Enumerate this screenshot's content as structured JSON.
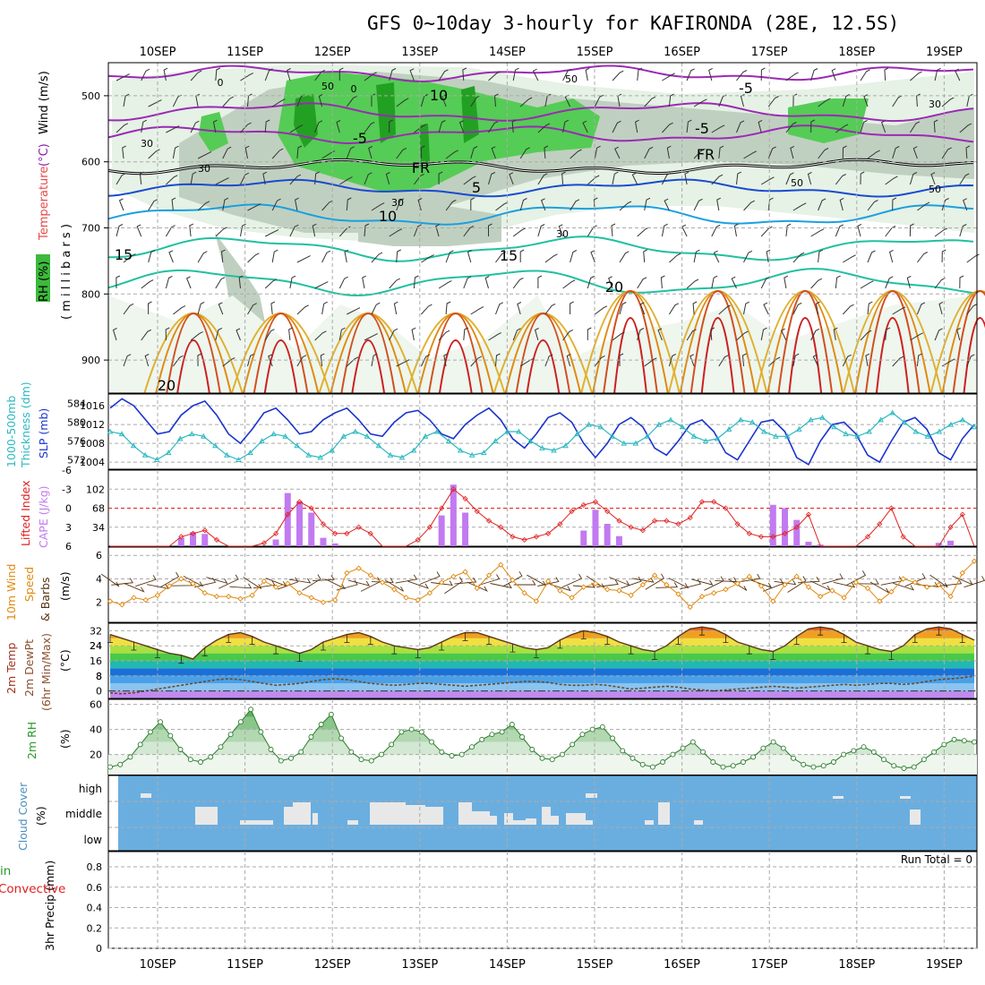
{
  "title": "GFS 0~10day 3-hourly for KAFIRONDA (28E, 12.5S)",
  "dates": [
    "10SEP",
    "11SEP",
    "12SEP",
    "13SEP",
    "14SEP",
    "15SEP",
    "16SEP",
    "17SEP",
    "18SEP",
    "19SEP"
  ],
  "colors": {
    "grid": "#aaaaaa",
    "slp": "#1a33cc",
    "thickness": "#2ab8c0",
    "lifted": "#e02020",
    "cape": "#c27af0",
    "wind": "#e08a10",
    "barb": "#553311",
    "rh2m": "#2a9a2a",
    "cloudBlue": "#6aaee0",
    "cloudGap": "#e8e8e8"
  },
  "chart_data": [
    {
      "id": "upper",
      "type": "contour",
      "ylabel_parts": [
        "RH (%)",
        "Temperature (°C)",
        "Wind (m/s)"
      ],
      "ylabel_units": "( m i l l i b a r s )",
      "yticks": [
        "500",
        "600",
        "700",
        "800",
        "900"
      ],
      "ylim": [
        950,
        450
      ],
      "contour_labels": [
        "10",
        "-5",
        "FR",
        "FR",
        "5",
        "10",
        "15",
        "15",
        "20",
        "20",
        "-5",
        "-5",
        "0",
        "0",
        "30",
        "30",
        "30",
        "30",
        "30",
        "50",
        "50",
        "50",
        "50"
      ]
    },
    {
      "id": "slp",
      "type": "line",
      "ylabel_left": "1000-500mb Thickness (dm)",
      "ylabel_right": "SLP (mb)",
      "ticks_left": [
        "584",
        "580",
        "576",
        "572"
      ],
      "ticks_right": [
        "1016",
        "1012",
        "1008",
        "1004"
      ],
      "slp_mb": [
        1015.5,
        1017.5,
        1016,
        1013,
        1010,
        1010.5,
        1014,
        1016,
        1017,
        1014,
        1010,
        1008,
        1011,
        1014.5,
        1015.5,
        1013,
        1010,
        1010.5,
        1013,
        1014.5,
        1015.5,
        1013,
        1010,
        1009.5,
        1012.5,
        1014.5,
        1015,
        1013,
        1010,
        1009,
        1012,
        1014,
        1015.5,
        1013,
        1009,
        1007,
        1010,
        1013.5,
        1014.5,
        1012.5,
        1008,
        1005,
        1008,
        1012,
        1013.5,
        1011.5,
        1007,
        1005.5,
        1008.5,
        1012,
        1013,
        1010.5,
        1006,
        1004.5,
        1008.5,
        1012.5,
        1013,
        1010.5,
        1005,
        1003.5,
        1008.5,
        1012,
        1012.5,
        1010,
        1005.5,
        1004,
        1008.5,
        1012.5,
        1013.5,
        1011,
        1006,
        1004.5,
        1009,
        1012
      ],
      "thickness_dm": [
        578,
        577.5,
        575,
        573,
        572,
        573.5,
        576.5,
        577.5,
        577,
        575,
        573,
        572,
        573.5,
        576,
        577.5,
        577,
        575,
        573,
        572.5,
        574,
        577,
        578,
        577,
        575,
        573,
        572.5,
        574,
        577,
        578,
        576,
        574,
        573,
        573.5,
        576,
        578,
        578,
        576,
        574.5,
        574,
        575,
        577.5,
        579.5,
        579,
        577,
        575.5,
        575.5,
        577,
        579.5,
        580.5,
        579,
        577,
        576,
        576.5,
        578.5,
        580.5,
        580,
        578,
        577,
        577,
        578.5,
        580.5,
        581,
        579,
        577.5,
        577,
        578,
        580.5,
        582,
        580,
        578,
        577,
        578,
        579.5,
        580.5,
        579
      ]
    },
    {
      "id": "cape",
      "type": "bar+line",
      "ylabel_left": "Lifted Index",
      "ylabel_right": "CAPE (J/kg)",
      "ticks_left": [
        "-6",
        "-3",
        "0",
        "3",
        "6"
      ],
      "ticks_right": [
        "102",
        "68",
        "34"
      ],
      "cape_jkg": [
        0,
        0,
        0,
        0,
        0,
        0,
        15,
        25,
        22,
        0,
        0,
        0,
        0,
        0,
        12,
        95,
        80,
        60,
        15,
        5,
        0,
        0,
        0,
        0,
        0,
        0,
        0,
        0,
        55,
        110,
        60,
        0,
        0,
        0,
        0,
        0,
        0,
        0,
        0,
        0,
        28,
        65,
        40,
        18,
        0,
        0,
        0,
        0,
        0,
        0,
        0,
        0,
        0,
        0,
        0,
        0,
        74,
        68,
        47,
        8,
        3,
        0,
        0,
        0,
        0,
        0,
        0,
        0,
        0,
        0,
        6,
        10,
        0,
        0
      ],
      "lifted_index": [
        6,
        6,
        6,
        6,
        6,
        6,
        4.5,
        4,
        3.5,
        5,
        6,
        6,
        6,
        5.5,
        4,
        1,
        -1,
        0,
        2.5,
        4,
        4,
        3,
        4,
        6,
        6,
        6,
        5,
        3,
        0,
        -3,
        -1.5,
        0.5,
        2,
        3,
        4.5,
        5,
        4.5,
        4,
        2.5,
        0.5,
        -0.5,
        -1,
        0.5,
        2,
        3,
        3.5,
        2,
        2,
        2.5,
        1.5,
        -1,
        -1,
        0,
        2.5,
        4,
        4.5,
        4.5,
        4,
        3,
        1,
        6,
        6,
        6,
        6,
        4.5,
        2.5,
        0,
        4.5,
        6,
        6,
        6,
        3,
        1,
        6
      ]
    },
    {
      "id": "wind",
      "type": "line",
      "ylabel": "10m Wind Speed & Barbs (m/s)",
      "ticks": [
        "6",
        "4",
        "2"
      ],
      "speed_ms": [
        2.1,
        1.8,
        2.4,
        2.2,
        2.6,
        3.4,
        4.0,
        3.6,
        2.8,
        2.5,
        2.5,
        2.3,
        2.6,
        3.8,
        3.3,
        3.6,
        2.8,
        2.4,
        2.0,
        2.2,
        4.5,
        4.9,
        4.3,
        3.7,
        3.1,
        2.4,
        2.2,
        2.8,
        3.7,
        4.2,
        4.6,
        3.2,
        4.3,
        5.2,
        3.9,
        2.8,
        2.1,
        3.8,
        3.0,
        2.4,
        3.3,
        3.6,
        3.1,
        3.0,
        2.6,
        3.5,
        4.3,
        3.5,
        2.7,
        1.6,
        2.5,
        2.8,
        3.1,
        3.6,
        4.2,
        3.4,
        2.1,
        3.5,
        4.2,
        3.3,
        2.5,
        3.0,
        2.4,
        3.7,
        3.2,
        2.1,
        2.9,
        4.0,
        3.7,
        3.3,
        3.5,
        2.5,
        4.5,
        5.5
      ]
    },
    {
      "id": "temp",
      "type": "area",
      "ylabel": "2m Temp 2m DewPt (6hr Min/Max) (°C)",
      "ticks": [
        "32",
        "24",
        "16",
        "8",
        "0"
      ],
      "temp_c": [
        30,
        28,
        26,
        24,
        22,
        20,
        19,
        17,
        23,
        27,
        30,
        31,
        29,
        26,
        24,
        22,
        20,
        22,
        26,
        28,
        30,
        31,
        29,
        26,
        24,
        23,
        22,
        23,
        26,
        29,
        31,
        31,
        29,
        27,
        25,
        23,
        22,
        23,
        27,
        30,
        32,
        31,
        29,
        26,
        24,
        22,
        21,
        24,
        29,
        33,
        34,
        33,
        30,
        26,
        24,
        22,
        21,
        24,
        29,
        33,
        34,
        33,
        30,
        26,
        24,
        22,
        21,
        24,
        30,
        33,
        34,
        33,
        30,
        27
      ],
      "dewpt_c": [
        -1,
        -1.5,
        -1,
        0,
        1,
        2,
        3,
        4,
        5,
        6,
        6.5,
        6,
        5,
        4,
        3,
        3.5,
        4,
        5,
        6,
        6.5,
        6,
        5,
        4,
        3.5,
        3,
        3.5,
        4,
        4,
        3.5,
        3,
        2.5,
        3,
        3.5,
        4,
        4.5,
        5,
        5,
        4.5,
        3.5,
        3,
        3,
        3.5,
        3,
        2,
        1,
        1.5,
        2,
        2.5,
        2,
        1,
        0.5,
        0,
        0.5,
        1,
        1.5,
        2,
        2.5,
        2,
        1.5,
        2,
        2.5,
        3,
        3.5,
        3,
        3.5,
        4,
        4,
        3.5,
        4,
        5,
        6,
        6.5,
        7,
        8
      ]
    },
    {
      "id": "rh2m",
      "type": "area",
      "ylabel": "2m RH (%)",
      "ticks": [
        "60",
        "40",
        "20"
      ],
      "rh_pct": [
        10,
        12,
        18,
        28,
        38,
        46,
        35,
        24,
        16,
        14,
        18,
        26,
        36,
        46,
        56,
        38,
        24,
        15,
        17,
        22,
        34,
        44,
        52,
        33,
        22,
        16,
        15,
        20,
        28,
        38,
        40,
        38,
        30,
        22,
        19,
        20,
        26,
        32,
        36,
        38,
        44,
        34,
        24,
        17,
        16,
        20,
        28,
        36,
        40,
        42,
        33,
        23,
        17,
        12,
        10,
        14,
        20,
        25,
        30,
        22,
        14,
        10,
        11,
        14,
        18,
        25,
        30,
        25,
        17,
        12,
        10,
        11,
        14,
        20,
        23,
        26,
        22,
        16,
        11,
        9,
        10,
        16,
        22,
        28,
        32,
        31,
        30
      ]
    },
    {
      "id": "cloud",
      "type": "heatmap",
      "ylabel": "Cloud Cover (%)",
      "levels": [
        "high",
        "middle",
        "low"
      ]
    },
    {
      "id": "precip",
      "type": "bar",
      "ylabel_parts": [
        "3hr Precip (mm)",
        "Total / Rain",
        "Convective"
      ],
      "ticks": [
        "0.8",
        "0.6",
        "0.4",
        "0.2",
        "0"
      ],
      "run_total": "Run Total = 0",
      "values": []
    }
  ]
}
